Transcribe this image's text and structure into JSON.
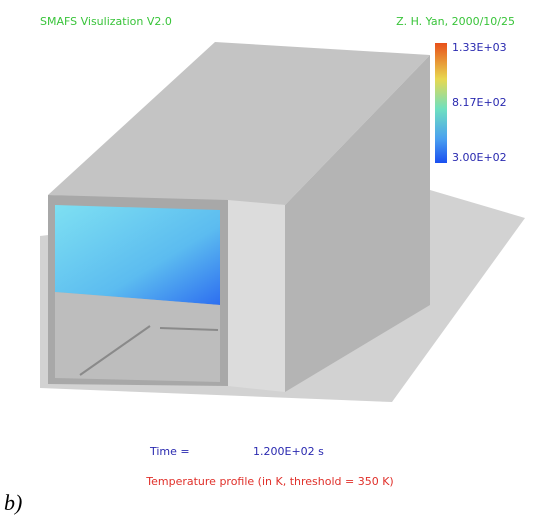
{
  "header": {
    "title": "SMAFS Visulization V2.0",
    "author_date": "Z. H. Yan, 2000/10/25"
  },
  "colorbar": {
    "labels": [
      "1.33E+03",
      "8.17E+02",
      "3.00E+02"
    ]
  },
  "footer": {
    "time_label": "Time =",
    "time_value": "1.200E+02 s",
    "caption": "Temperature profile (in K, threshold = 350 K)"
  },
  "figure_label": "b)"
}
